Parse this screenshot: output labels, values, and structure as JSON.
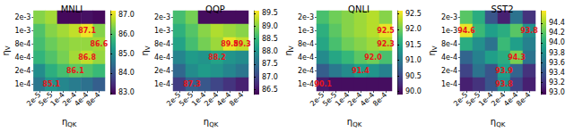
{
  "chart_data": [
    {
      "type": "heatmap",
      "title": "MNLI",
      "xlabel": "ηQK",
      "ylabel": "ηV",
      "x": [
        "2e-5",
        "5e-5",
        "1e-4",
        "2e-4",
        "4e-4",
        "8e-4"
      ],
      "y": [
        "2e-3",
        "1e-3",
        "8e-4",
        "4e-4",
        "2e-4",
        "1e-4"
      ],
      "cells": [
        [
          86.4,
          86.6,
          83.0,
          83.0,
          83.1,
          83.0
        ],
        [
          86.0,
          86.4,
          86.6,
          86.8,
          87.1,
          86.4
        ],
        [
          85.9,
          86.2,
          86.4,
          86.5,
          86.5,
          86.6
        ],
        [
          85.7,
          86.0,
          86.3,
          86.6,
          86.8,
          86.5
        ],
        [
          85.0,
          85.6,
          85.9,
          86.1,
          86.0,
          85.8
        ],
        [
          84.6,
          85.1,
          84.9,
          84.7,
          84.5,
          84.2
        ]
      ],
      "colorbar": {
        "range": [
          82.9,
          87.2
        ],
        "ticks": [
          {
            "value": 83,
            "label": "83.0"
          },
          {
            "value": 84,
            "label": "84.0"
          },
          {
            "value": 85,
            "label": "85.0"
          },
          {
            "value": 86,
            "label": "86.0"
          },
          {
            "value": 87,
            "label": "87.0"
          }
        ]
      },
      "annotations": [
        {
          "x": "4e-4",
          "y": "1e-3",
          "text": "87.1"
        },
        {
          "x": "8e-4",
          "y": "8e-4",
          "text": "86.6"
        },
        {
          "x": "4e-4",
          "y": "4e-4",
          "text": "86.8"
        },
        {
          "x": "2e-4",
          "y": "2e-4",
          "text": "86.1"
        },
        {
          "x": "5e-5",
          "y": "1e-4",
          "text": "85.1"
        }
      ]
    },
    {
      "type": "heatmap",
      "title": "QQP",
      "xlabel": "ηQK",
      "ylabel": "ηV",
      "x": [
        "2e-5",
        "5e-5",
        "1e-4",
        "2e-4",
        "4e-4",
        "8e-4"
      ],
      "y": [
        "2e-3",
        "1e-3",
        "8e-4",
        "4e-4",
        "2e-4",
        "1e-4"
      ],
      "cells": [
        [
          88.6,
          88.9,
          86.4,
          86.4,
          86.4,
          86.4
        ],
        [
          88.4,
          88.7,
          89.0,
          89.2,
          89.1,
          89.0
        ],
        [
          88.2,
          88.6,
          88.9,
          89.1,
          89.5,
          89.3
        ],
        [
          87.8,
          88.1,
          88.0,
          88.2,
          88.0,
          87.9
        ],
        [
          87.4,
          87.9,
          88.1,
          88.0,
          87.8,
          87.6
        ],
        [
          86.9,
          87.3,
          87.2,
          87.0,
          86.8,
          86.6
        ]
      ],
      "colorbar": {
        "range": [
          86.3,
          89.6
        ],
        "ticks": [
          {
            "value": 86.5,
            "label": "86.5"
          },
          {
            "value": 87,
            "label": "87.0"
          },
          {
            "value": 87.5,
            "label": "87.5"
          },
          {
            "value": 88,
            "label": "88.0"
          },
          {
            "value": 88.5,
            "label": "88.5"
          },
          {
            "value": 89,
            "label": "89.0"
          },
          {
            "value": 89.5,
            "label": "89.5"
          }
        ]
      },
      "annotations": [
        {
          "x": "4e-4",
          "y": "8e-4",
          "text": "89.5"
        },
        {
          "x": "8e-4",
          "y": "8e-4",
          "text": "89.3"
        },
        {
          "x": "2e-4",
          "y": "4e-4",
          "text": "88.2"
        },
        {
          "x": "5e-5",
          "y": "1e-4",
          "text": "87.3"
        }
      ]
    },
    {
      "type": "heatmap",
      "title": "QNLI",
      "xlabel": "ηQK",
      "ylabel": "ηV",
      "x": [
        "2e-5",
        "5e-5",
        "1e-4",
        "2e-4",
        "4e-4",
        "8e-4"
      ],
      "y": [
        "2e-3",
        "1e-3",
        "8e-4",
        "4e-4",
        "2e-4",
        "1e-4"
      ],
      "cells": [
        [
          91.8,
          92.0,
          92.1,
          92.2,
          92.3,
          92.1
        ],
        [
          91.6,
          91.9,
          92.1,
          92.2,
          92.3,
          92.5
        ],
        [
          91.5,
          91.8,
          92.0,
          92.1,
          92.2,
          92.3
        ],
        [
          91.2,
          91.5,
          91.7,
          91.9,
          92.0,
          91.8
        ],
        [
          90.7,
          91.0,
          91.2,
          91.4,
          91.3,
          91.1
        ],
        [
          90.1,
          90.0,
          90.0,
          90.0,
          90.0,
          90.0
        ]
      ],
      "colorbar": {
        "range": [
          89.9,
          92.6
        ],
        "ticks": [
          {
            "value": 90,
            "label": "90.0"
          },
          {
            "value": 90.5,
            "label": "90.5"
          },
          {
            "value": 91,
            "label": "91.0"
          },
          {
            "value": 91.5,
            "label": "91.5"
          },
          {
            "value": 92,
            "label": "92.0"
          },
          {
            "value": 92.5,
            "label": "92.5"
          }
        ]
      },
      "annotations": [
        {
          "x": "8e-4",
          "y": "1e-3",
          "text": "92.5"
        },
        {
          "x": "8e-4",
          "y": "8e-4",
          "text": "92.3"
        },
        {
          "x": "4e-4",
          "y": "4e-4",
          "text": "92.0"
        },
        {
          "x": "2e-4",
          "y": "2e-4",
          "text": "91.4"
        },
        {
          "x": "2e-5",
          "y": "1e-4",
          "text": "90.1"
        }
      ]
    },
    {
      "type": "heatmap",
      "title": "SST2",
      "xlabel": "ηQK",
      "ylabel": "ηV",
      "x": [
        "2e-5",
        "5e-5",
        "1e-4",
        "2e-4",
        "4e-4",
        "8e-4"
      ],
      "y": [
        "2e-3",
        "1e-3",
        "8e-4",
        "4e-4",
        "2e-4",
        "1e-4"
      ],
      "cells": [
        [
          94.2,
          94.0,
          93.4,
          93.1,
          93.6,
          93.2
        ],
        [
          94.6,
          94.1,
          93.9,
          94.0,
          94.2,
          93.8
        ],
        [
          94.0,
          93.8,
          93.6,
          94.1,
          93.9,
          93.7
        ],
        [
          93.5,
          93.7,
          93.9,
          94.0,
          94.3,
          93.6
        ],
        [
          93.3,
          93.6,
          93.4,
          93.9,
          93.5,
          93.2
        ],
        [
          93.1,
          93.2,
          93.4,
          93.8,
          93.3,
          93.1
        ]
      ],
      "colorbar": {
        "range": [
          92.95,
          94.65
        ],
        "ticks": [
          {
            "value": 93,
            "label": "93.0"
          },
          {
            "value": 93.2,
            "label": "93.2"
          },
          {
            "value": 93.4,
            "label": "93.4"
          },
          {
            "value": 93.6,
            "label": "93.6"
          },
          {
            "value": 93.8,
            "label": "93.8"
          },
          {
            "value": 94,
            "label": "94.0"
          },
          {
            "value": 94.2,
            "label": "94.2"
          },
          {
            "value": 94.4,
            "label": "94.4"
          }
        ]
      },
      "annotations": [
        {
          "x": "2e-5",
          "y": "1e-3",
          "text": "94.6"
        },
        {
          "x": "8e-4",
          "y": "1e-3",
          "text": "93.8"
        },
        {
          "x": "4e-4",
          "y": "4e-4",
          "text": "94.3"
        },
        {
          "x": "2e-4",
          "y": "2e-4",
          "text": "93.9"
        },
        {
          "x": "2e-4",
          "y": "1e-4",
          "text": "93.8"
        }
      ]
    }
  ]
}
